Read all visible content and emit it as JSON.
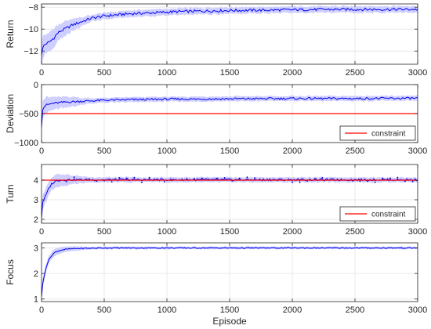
{
  "chart_data": [
    {
      "type": "line",
      "ylabel": "Return",
      "xlim": [
        0,
        3000
      ],
      "ylim": [
        -13.2,
        -7.7
      ],
      "yticks": [
        -12,
        -10,
        -8
      ],
      "xticks": [
        0,
        500,
        1000,
        1500,
        2000,
        2500,
        3000
      ],
      "grid": true,
      "series": [
        {
          "x": [
            0,
            15,
            40,
            60,
            80,
            100,
            125,
            150,
            200,
            250,
            300,
            350,
            400,
            450,
            500,
            600,
            700,
            800,
            900,
            1000,
            1100,
            1200,
            1300,
            1400,
            1500,
            1700,
            1900,
            2100,
            2300,
            2500,
            2700,
            2900,
            3000
          ],
          "y": [
            -12.3,
            -11.5,
            -11.3,
            -11.2,
            -11.0,
            -10.8,
            -10.4,
            -10.2,
            -9.9,
            -9.6,
            -9.4,
            -9.2,
            -9.0,
            -8.9,
            -8.8,
            -8.7,
            -8.6,
            -8.55,
            -8.5,
            -8.45,
            -8.4,
            -8.38,
            -8.35,
            -8.33,
            -8.3,
            -8.28,
            -8.25,
            -8.22,
            -8.2,
            -8.2,
            -8.2,
            -8.2,
            -8.2
          ],
          "band": 0.35
        }
      ]
    },
    {
      "type": "line",
      "ylabel": "Deviation",
      "xlim": [
        0,
        3000
      ],
      "ylim": [
        -1000,
        0
      ],
      "yticks": [
        -1000,
        -500,
        0
      ],
      "xticks": [
        0,
        500,
        1000,
        1500,
        2000,
        2500,
        3000
      ],
      "grid": true,
      "legend": "bottom-right",
      "series": [
        {
          "x": [
            0,
            10,
            25,
            40,
            60,
            80,
            100,
            150,
            200,
            300,
            400,
            500,
            700,
            900,
            1000,
            1200,
            1500,
            2000,
            2500,
            3000
          ],
          "y": [
            -720,
            -420,
            -370,
            -350,
            -340,
            -330,
            -320,
            -310,
            -300,
            -290,
            -280,
            -270,
            -260,
            -255,
            -250,
            -250,
            -245,
            -240,
            -240,
            -235
          ],
          "band": 50
        },
        {
          "name": "constraint",
          "x": [
            0,
            3000
          ],
          "y": [
            -500,
            -500
          ],
          "color": "#ff0000"
        }
      ]
    },
    {
      "type": "line",
      "ylabel": "Turn",
      "xlim": [
        0,
        3000
      ],
      "ylim": [
        1.8,
        4.8
      ],
      "yticks": [
        2,
        3,
        4
      ],
      "xticks": [
        0,
        500,
        1000,
        1500,
        2000,
        2500,
        3000
      ],
      "grid": true,
      "legend": "bottom-right",
      "series": [
        {
          "x": [
            0,
            10,
            25,
            40,
            60,
            80,
            100,
            130,
            160,
            200,
            300,
            500,
            1000,
            1500,
            2000,
            2500,
            3000
          ],
          "y": [
            2.1,
            2.9,
            3.1,
            3.3,
            3.6,
            3.8,
            3.9,
            4.0,
            4.0,
            4.02,
            4.02,
            4.02,
            4.02,
            4.02,
            4.02,
            4.02,
            4.02
          ],
          "band": 0.15
        },
        {
          "name": "constraint",
          "x": [
            0,
            3000
          ],
          "y": [
            4,
            4
          ],
          "color": "#ff0000"
        }
      ]
    },
    {
      "type": "line",
      "ylabel": "Focus",
      "xlabel": "Episode",
      "xlim": [
        0,
        3000
      ],
      "ylim": [
        0.9,
        3.2
      ],
      "yticks": [
        1,
        2,
        3
      ],
      "xticks": [
        0,
        500,
        1000,
        1500,
        2000,
        2500,
        3000
      ],
      "grid": true,
      "series": [
        {
          "x": [
            0,
            10,
            25,
            40,
            60,
            80,
            100,
            130,
            160,
            200,
            250,
            300,
            400,
            500,
            1000,
            1500,
            2000,
            2500,
            3000
          ],
          "y": [
            1.1,
            1.6,
            2.0,
            2.3,
            2.55,
            2.7,
            2.8,
            2.88,
            2.92,
            2.95,
            2.97,
            2.98,
            2.99,
            3.0,
            3.0,
            3.0,
            3.0,
            3.0,
            3.0
          ],
          "band": 0.06
        }
      ]
    }
  ]
}
